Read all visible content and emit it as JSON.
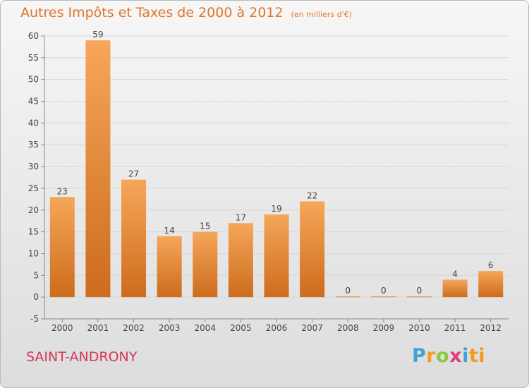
{
  "header": {
    "title": "Autres Impôts et Taxes de 2000 à 2012",
    "unit": "(en milliers d'€)"
  },
  "footer": {
    "commune": "SAINT-ANDRONY",
    "logo": [
      "P",
      "r",
      "o",
      "x",
      "i",
      "ti"
    ]
  },
  "colors": {
    "title": "#e0762c",
    "commune": "#d8355b",
    "bar_light": "#f6a65a",
    "bar_dark": "#cd6c1c"
  },
  "chart_data": {
    "type": "bar",
    "title": "Autres Impôts et Taxes de 2000 à 2012",
    "subtitle": "(en milliers d'€)",
    "categories": [
      "2000",
      "2001",
      "2002",
      "2003",
      "2004",
      "2005",
      "2006",
      "2007",
      "2008",
      "2009",
      "2010",
      "2011",
      "2012"
    ],
    "values": [
      23,
      59,
      27,
      14,
      15,
      17,
      19,
      22,
      0,
      0,
      0,
      4,
      6
    ],
    "data_labels": [
      "23",
      "59",
      "27",
      "14",
      "15",
      "17",
      "19",
      "22",
      "0",
      "0",
      "0",
      "4",
      "6"
    ],
    "yticks": [
      -5,
      0,
      5,
      10,
      15,
      20,
      25,
      30,
      35,
      40,
      45,
      50,
      55,
      60
    ],
    "ylim": [
      -5,
      60
    ],
    "grid": true
  }
}
